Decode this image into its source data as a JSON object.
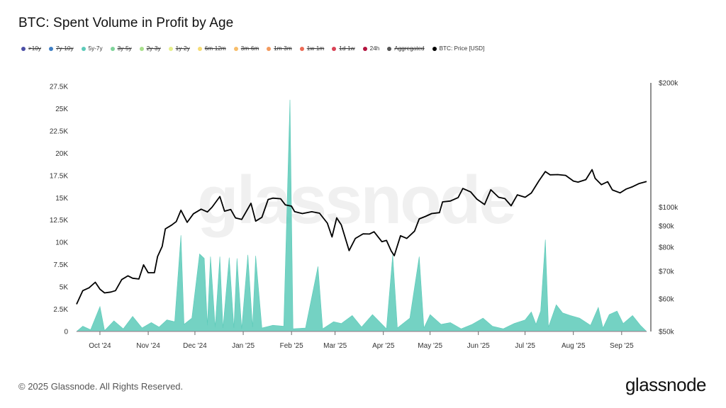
{
  "title": "BTC: Spent Volume in Profit by Age",
  "legend": [
    {
      "label": ">10y",
      "color": "#4b4fa6",
      "active": false
    },
    {
      "label": "7y-10y",
      "color": "#3f7fc4",
      "active": false
    },
    {
      "label": "5y-7y",
      "color": "#5ccab9",
      "active": true
    },
    {
      "label": "3y-5y",
      "color": "#7fd39a",
      "active": false
    },
    {
      "label": "2y-3y",
      "color": "#a8e08c",
      "active": false
    },
    {
      "label": "1y-2y",
      "color": "#e6ef8c",
      "active": false
    },
    {
      "label": "6m-12m",
      "color": "#f6dc74",
      "active": false
    },
    {
      "label": "3m-6m",
      "color": "#f7bd6a",
      "active": false
    },
    {
      "label": "1m-3m",
      "color": "#f39a5e",
      "active": false
    },
    {
      "label": "1w-1m",
      "color": "#ec6b55",
      "active": false
    },
    {
      "label": "1d-1w",
      "color": "#d94255",
      "active": false
    },
    {
      "label": "24h",
      "color": "#b3123e",
      "active": true
    },
    {
      "label": "Aggregated",
      "color": "#555555",
      "active": false
    },
    {
      "label": "BTC: Price [USD]",
      "color": "#000000",
      "active": true
    }
  ],
  "watermark": "glassnode",
  "footer": "© 2025 Glassnode. All Rights Reserved.",
  "brand": "glassnode",
  "chart_data": {
    "type": "area",
    "x_ticks": [
      "Oct '24",
      "Nov '24",
      "Dec '24",
      "Jan '25",
      "Feb '25",
      "Mar '25",
      "Apr '25",
      "May '25",
      "Jun '25",
      "Jul '25",
      "Aug '25",
      "Sep '25"
    ],
    "y_left_ticks": [
      "0",
      "2.5K",
      "5K",
      "7.5K",
      "10K",
      "12.5K",
      "15K",
      "17.5K",
      "20K",
      "22.5K",
      "25K",
      "27.5K"
    ],
    "y_left_range": [
      0,
      27500
    ],
    "y_right_ticks": [
      "$50k",
      "$60k",
      "$70k",
      "$80k",
      "$90k",
      "$100k",
      "$200k"
    ],
    "y_right_scale": "log",
    "y_right_range": [
      50000,
      200000
    ],
    "x_range": [
      "2024-09-16",
      "2025-09-17"
    ],
    "series": [
      {
        "name": "5y-7y",
        "kind": "area",
        "color": "#5ccab9",
        "points": [
          [
            "2024-09-16",
            0
          ],
          [
            "2024-09-20",
            600
          ],
          [
            "2024-09-25",
            200
          ],
          [
            "2024-10-01",
            2800
          ],
          [
            "2024-10-04",
            100
          ],
          [
            "2024-10-10",
            1200
          ],
          [
            "2024-10-16",
            300
          ],
          [
            "2024-10-22",
            1700
          ],
          [
            "2024-10-28",
            400
          ],
          [
            "2024-11-03",
            1000
          ],
          [
            "2024-11-08",
            500
          ],
          [
            "2024-11-13",
            1300
          ],
          [
            "2024-11-18",
            1100
          ],
          [
            "2024-11-22",
            10800
          ],
          [
            "2024-11-24",
            800
          ],
          [
            "2024-11-29",
            1500
          ],
          [
            "2024-12-04",
            8700
          ],
          [
            "2024-12-07",
            8200
          ],
          [
            "2024-12-09",
            700
          ],
          [
            "2024-12-11",
            8400
          ],
          [
            "2024-12-14",
            500
          ],
          [
            "2024-12-17",
            8400
          ],
          [
            "2024-12-19",
            400
          ],
          [
            "2024-12-23",
            8300
          ],
          [
            "2024-12-26",
            400
          ],
          [
            "2024-12-28",
            8200
          ],
          [
            "2024-12-31",
            300
          ],
          [
            "2025-01-04",
            8600
          ],
          [
            "2025-01-07",
            500
          ],
          [
            "2025-01-09",
            8500
          ],
          [
            "2025-01-13",
            400
          ],
          [
            "2025-01-20",
            700
          ],
          [
            "2025-01-27",
            600
          ],
          [
            "2025-01-31",
            26000
          ],
          [
            "2025-02-02",
            300
          ],
          [
            "2025-02-10",
            400
          ],
          [
            "2025-02-18",
            7300
          ],
          [
            "2025-02-21",
            300
          ],
          [
            "2025-02-28",
            1100
          ],
          [
            "2025-03-05",
            900
          ],
          [
            "2025-03-12",
            1800
          ],
          [
            "2025-03-18",
            500
          ],
          [
            "2025-03-25",
            1900
          ],
          [
            "2025-04-03",
            300
          ],
          [
            "2025-04-07",
            8600
          ],
          [
            "2025-04-10",
            400
          ],
          [
            "2025-04-18",
            1500
          ],
          [
            "2025-04-24",
            8400
          ],
          [
            "2025-04-27",
            400
          ],
          [
            "2025-05-01",
            1900
          ],
          [
            "2025-05-08",
            800
          ],
          [
            "2025-05-14",
            1000
          ],
          [
            "2025-05-21",
            300
          ],
          [
            "2025-05-28",
            800
          ],
          [
            "2025-06-04",
            1500
          ],
          [
            "2025-06-10",
            600
          ],
          [
            "2025-06-17",
            300
          ],
          [
            "2025-06-24",
            900
          ],
          [
            "2025-07-01",
            1300
          ],
          [
            "2025-07-05",
            2200
          ],
          [
            "2025-07-08",
            800
          ],
          [
            "2025-07-11",
            2300
          ],
          [
            "2025-07-14",
            10300
          ],
          [
            "2025-07-16",
            500
          ],
          [
            "2025-07-21",
            3000
          ],
          [
            "2025-07-25",
            2100
          ],
          [
            "2025-07-30",
            1800
          ],
          [
            "2025-08-05",
            1500
          ],
          [
            "2025-08-12",
            700
          ],
          [
            "2025-08-17",
            2700
          ],
          [
            "2025-08-20",
            400
          ],
          [
            "2025-08-24",
            1900
          ],
          [
            "2025-08-29",
            2300
          ],
          [
            "2025-09-02",
            900
          ],
          [
            "2025-09-08",
            1800
          ],
          [
            "2025-09-13",
            700
          ],
          [
            "2025-09-17",
            0
          ]
        ]
      },
      {
        "name": "24h",
        "kind": "area",
        "color": "#b3123e",
        "points": [
          [
            "2024-09-16",
            0
          ],
          [
            "2025-09-17",
            0
          ]
        ]
      },
      {
        "name": "BTC: Price [USD]",
        "kind": "line",
        "axis": "right",
        "color": "#000000",
        "points": [
          [
            "2024-09-16",
            58200
          ],
          [
            "2024-09-20",
            62800
          ],
          [
            "2024-09-24",
            63800
          ],
          [
            "2024-09-28",
            65800
          ],
          [
            "2024-10-01",
            63300
          ],
          [
            "2024-10-04",
            62000
          ],
          [
            "2024-10-08",
            62300
          ],
          [
            "2024-10-11",
            62800
          ],
          [
            "2024-10-15",
            66800
          ],
          [
            "2024-10-19",
            68200
          ],
          [
            "2024-10-22",
            67300
          ],
          [
            "2024-10-26",
            67000
          ],
          [
            "2024-10-29",
            72500
          ],
          [
            "2024-11-01",
            69400
          ],
          [
            "2024-11-05",
            69400
          ],
          [
            "2024-11-07",
            75900
          ],
          [
            "2024-11-10",
            80400
          ],
          [
            "2024-11-12",
            88600
          ],
          [
            "2024-11-16",
            90500
          ],
          [
            "2024-11-19",
            92300
          ],
          [
            "2024-11-22",
            98300
          ],
          [
            "2024-11-26",
            91900
          ],
          [
            "2024-11-30",
            96400
          ],
          [
            "2024-12-05",
            98900
          ],
          [
            "2024-12-09",
            97400
          ],
          [
            "2024-12-12",
            100000
          ],
          [
            "2024-12-17",
            106100
          ],
          [
            "2024-12-20",
            97800
          ],
          [
            "2024-12-24",
            98700
          ],
          [
            "2024-12-27",
            94200
          ],
          [
            "2024-12-31",
            93400
          ],
          [
            "2025-01-06",
            102200
          ],
          [
            "2025-01-09",
            92500
          ],
          [
            "2025-01-13",
            94500
          ],
          [
            "2025-01-17",
            104400
          ],
          [
            "2025-01-20",
            105200
          ],
          [
            "2025-01-25",
            104800
          ],
          [
            "2025-01-28",
            101300
          ],
          [
            "2025-02-01",
            100600
          ],
          [
            "2025-02-03",
            97600
          ],
          [
            "2025-02-08",
            96500
          ],
          [
            "2025-02-14",
            97500
          ],
          [
            "2025-02-19",
            96700
          ],
          [
            "2025-02-24",
            91500
          ],
          [
            "2025-02-27",
            84700
          ],
          [
            "2025-03-02",
            94200
          ],
          [
            "2025-03-05",
            90600
          ],
          [
            "2025-03-10",
            78500
          ],
          [
            "2025-03-14",
            84000
          ],
          [
            "2025-03-19",
            86200
          ],
          [
            "2025-03-23",
            86100
          ],
          [
            "2025-03-26",
            87200
          ],
          [
            "2025-03-31",
            82500
          ],
          [
            "2025-04-03",
            83100
          ],
          [
            "2025-04-06",
            78400
          ],
          [
            "2025-04-08",
            76300
          ],
          [
            "2025-04-12",
            85300
          ],
          [
            "2025-04-16",
            84000
          ],
          [
            "2025-04-21",
            87500
          ],
          [
            "2025-04-24",
            93700
          ],
          [
            "2025-04-28",
            95000
          ],
          [
            "2025-05-02",
            96500
          ],
          [
            "2025-05-07",
            97000
          ],
          [
            "2025-05-09",
            103000
          ],
          [
            "2025-05-14",
            103500
          ],
          [
            "2025-05-19",
            105500
          ],
          [
            "2025-05-22",
            111000
          ],
          [
            "2025-05-27",
            108900
          ],
          [
            "2025-05-31",
            104600
          ],
          [
            "2025-06-05",
            101500
          ],
          [
            "2025-06-09",
            110200
          ],
          [
            "2025-06-14",
            105700
          ],
          [
            "2025-06-18",
            104900
          ],
          [
            "2025-06-22",
            100800
          ],
          [
            "2025-06-26",
            107100
          ],
          [
            "2025-07-01",
            105700
          ],
          [
            "2025-07-05",
            108200
          ],
          [
            "2025-07-10",
            116000
          ],
          [
            "2025-07-14",
            122000
          ],
          [
            "2025-07-17",
            119800
          ],
          [
            "2025-07-22",
            119900
          ],
          [
            "2025-07-27",
            119400
          ],
          [
            "2025-08-01",
            115700
          ],
          [
            "2025-08-04",
            115000
          ],
          [
            "2025-08-09",
            116600
          ],
          [
            "2025-08-13",
            123300
          ],
          [
            "2025-08-15",
            117400
          ],
          [
            "2025-08-19",
            113400
          ],
          [
            "2025-08-23",
            115300
          ],
          [
            "2025-08-26",
            110100
          ],
          [
            "2025-08-31",
            108300
          ],
          [
            "2025-09-04",
            110700
          ],
          [
            "2025-09-08",
            112100
          ],
          [
            "2025-09-12",
            114000
          ],
          [
            "2025-09-17",
            115400
          ]
        ]
      }
    ],
    "grid": false,
    "legend_position": "top-left"
  }
}
